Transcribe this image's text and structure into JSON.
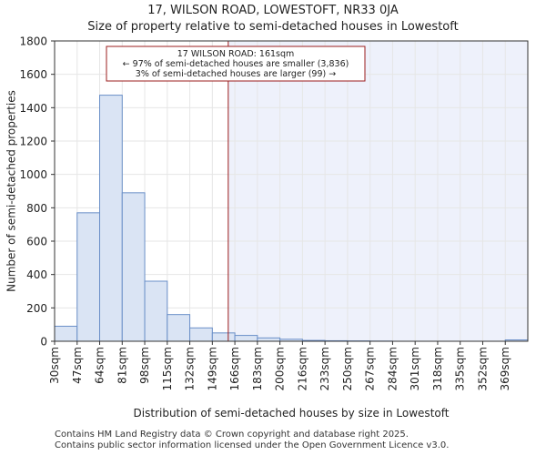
{
  "header": {
    "title_line1": "17, WILSON ROAD, LOWESTOFT, NR33 0JA",
    "title_line2": "Size of property relative to semi-detached houses in Lowestoft"
  },
  "chart_data": {
    "type": "bar",
    "categories": [
      "30sqm",
      "47sqm",
      "64sqm",
      "81sqm",
      "98sqm",
      "115sqm",
      "132sqm",
      "149sqm",
      "166sqm",
      "183sqm",
      "200sqm",
      "216sqm",
      "233sqm",
      "250sqm",
      "267sqm",
      "284sqm",
      "301sqm",
      "318sqm",
      "335sqm",
      "352sqm",
      "369sqm"
    ],
    "values": [
      90,
      770,
      1475,
      890,
      360,
      160,
      80,
      50,
      35,
      20,
      12,
      5,
      3,
      2,
      1,
      0,
      0,
      0,
      0,
      0,
      8
    ],
    "xlabel": "Distribution of semi-detached houses by size in Lowestoft",
    "ylabel": "Number of semi-detached properties",
    "ylim": [
      0,
      1800
    ],
    "yticks": [
      0,
      200,
      400,
      600,
      800,
      1000,
      1200,
      1400,
      1600,
      1800
    ],
    "marker_value_sqm": 161,
    "annotation": {
      "line1": "17 WILSON ROAD: 161sqm",
      "line2": "← 97% of semi-detached houses are smaller (3,836)",
      "line3": "3% of semi-detached houses are larger (99) →"
    },
    "colors": {
      "bar_fill": "#dae4f4",
      "bar_stroke": "#6a8fc8",
      "marker": "#9b1c1c",
      "highlight_bg": "#eef1fb"
    }
  },
  "footer": {
    "line1": "Contains HM Land Registry data © Crown copyright and database right 2025.",
    "line2": "Contains public sector information licensed under the Open Government Licence v3.0."
  }
}
